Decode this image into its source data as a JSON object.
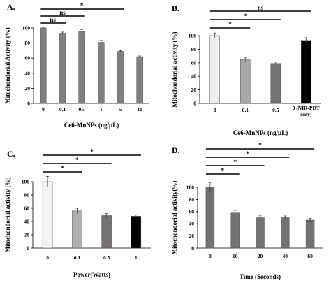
{
  "chart_data": [
    {
      "panel": "A.",
      "type": "bar",
      "categories": [
        "0",
        "0.1",
        "0.5",
        "1",
        "5",
        "10"
      ],
      "values": [
        100,
        93,
        95,
        81,
        69,
        62
      ],
      "errors": [
        1,
        1.5,
        3,
        2.5,
        1,
        1
      ],
      "colors": [
        "#808080",
        "#808080",
        "#808080",
        "#808080",
        "#808080",
        "#808080"
      ],
      "xlabel": "Ce6-MnNPs (ng/µL)",
      "ylabel": "Mitochondorial Activity (%)",
      "ylim": [
        0,
        100
      ],
      "yticks": [
        0,
        20,
        40,
        60,
        80,
        100
      ],
      "significance": [
        {
          "from": 0,
          "to": 1,
          "label": "ns"
        },
        {
          "from": 0,
          "to": 2,
          "label": "ns"
        },
        {
          "from": 0,
          "to": 4,
          "label": "*"
        }
      ]
    },
    {
      "panel": "B.",
      "type": "bar",
      "categories": [
        "0",
        "0.1",
        "0.5",
        "0 (NIR-PDT only)"
      ],
      "values": [
        100,
        65,
        59,
        93
      ],
      "errors": [
        4,
        3,
        2,
        4
      ],
      "colors": [
        "#eeeeee",
        "#a6a6a6",
        "#767171",
        "#000000"
      ],
      "xlabel": "Ce6-MnNPs (ng/µL)",
      "ylabel": "Mitochondorial activity (%)",
      "ylim": [
        0,
        100
      ],
      "yticks": [
        0,
        20,
        40,
        60,
        80,
        100
      ],
      "significance": [
        {
          "from": 0,
          "to": 1,
          "label": "*"
        },
        {
          "from": 0,
          "to": 2,
          "label": "*"
        },
        {
          "from": 0,
          "to": 3,
          "label": "ns"
        }
      ]
    },
    {
      "panel": "C.",
      "type": "bar",
      "categories": [
        "0",
        "0.1",
        "0.5",
        "1"
      ],
      "values": [
        100,
        56,
        49,
        48
      ],
      "errors": [
        8,
        4,
        3,
        2
      ],
      "colors": [
        "#f2f2f2",
        "#b0b0b0",
        "#767171",
        "#000000"
      ],
      "xlabel": "Power(Watts)",
      "ylabel": "Mitochondorial activity (%)",
      "ylim": [
        0,
        100
      ],
      "yticks": [
        0,
        20,
        40,
        60,
        80,
        100
      ],
      "significance": [
        {
          "from": 0,
          "to": 1,
          "label": "*"
        },
        {
          "from": 0,
          "to": 2,
          "label": "*"
        },
        {
          "from": 0,
          "to": 3,
          "label": "*"
        }
      ]
    },
    {
      "panel": "D.",
      "type": "bar",
      "categories": [
        "0",
        "10",
        "20",
        "40",
        "60"
      ],
      "values": [
        100,
        59,
        50,
        50,
        46
      ],
      "errors": [
        8,
        3,
        3,
        3,
        3
      ],
      "colors": [
        "#767171",
        "#767171",
        "#767171",
        "#767171",
        "#767171"
      ],
      "xlabel": "Time (Seconds)",
      "ylabel": "Mitochondorial activity(%)",
      "ylim": [
        0,
        100
      ],
      "yticks": [
        0,
        20,
        40,
        60,
        80,
        100
      ],
      "significance": [
        {
          "from": 0,
          "to": 1,
          "label": "*"
        },
        {
          "from": 0,
          "to": 2,
          "label": "*"
        },
        {
          "from": 0,
          "to": 3,
          "label": "*"
        },
        {
          "from": 0,
          "to": 4,
          "label": "*"
        }
      ]
    }
  ]
}
